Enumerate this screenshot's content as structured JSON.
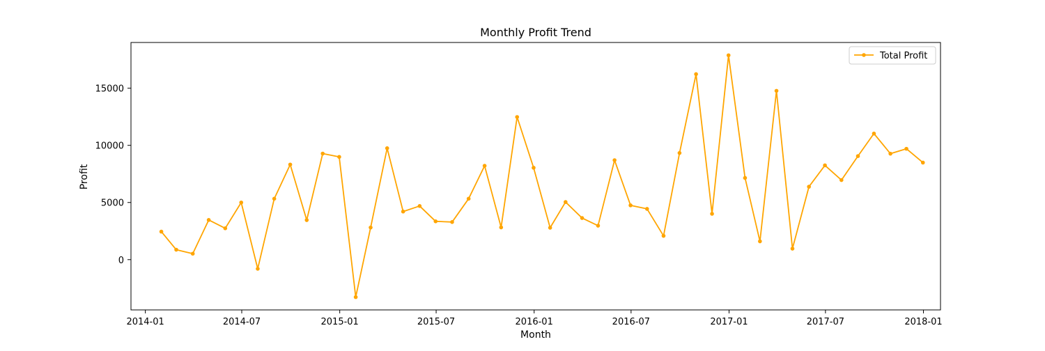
{
  "chart_data": {
    "type": "line",
    "title": "Monthly Profit Trend",
    "xlabel": "Month",
    "ylabel": "Profit",
    "xlim": [
      "2013-12-05",
      "2018-02-02"
    ],
    "ylim": [
      -4400,
      19000
    ],
    "x_ticks": [
      {
        "value": "2014-01-01",
        "label": "2014-01"
      },
      {
        "value": "2014-07-01",
        "label": "2014-07"
      },
      {
        "value": "2015-01-01",
        "label": "2015-01"
      },
      {
        "value": "2015-07-01",
        "label": "2015-07"
      },
      {
        "value": "2016-01-01",
        "label": "2016-01"
      },
      {
        "value": "2016-07-01",
        "label": "2016-07"
      },
      {
        "value": "2017-01-01",
        "label": "2017-01"
      },
      {
        "value": "2017-07-01",
        "label": "2017-07"
      },
      {
        "value": "2018-01-01",
        "label": "2018-01"
      }
    ],
    "y_ticks": [
      {
        "value": 0,
        "label": "0"
      },
      {
        "value": 5000,
        "label": "5000"
      },
      {
        "value": 10000,
        "label": "10000"
      },
      {
        "value": 15000,
        "label": "15000"
      }
    ],
    "grid": false,
    "legend_position": "top-right",
    "series": [
      {
        "name": "Total Profit",
        "color": "#FFA500",
        "marker": "circle",
        "x": [
          "2014-01-31",
          "2014-02-28",
          "2014-03-31",
          "2014-04-30",
          "2014-05-31",
          "2014-06-30",
          "2014-07-31",
          "2014-08-31",
          "2014-09-30",
          "2014-10-31",
          "2014-11-30",
          "2014-12-31",
          "2015-01-31",
          "2015-02-28",
          "2015-03-31",
          "2015-04-30",
          "2015-05-31",
          "2015-06-30",
          "2015-07-31",
          "2015-08-31",
          "2015-09-30",
          "2015-10-31",
          "2015-11-30",
          "2015-12-31",
          "2016-01-31",
          "2016-02-29",
          "2016-03-31",
          "2016-04-30",
          "2016-05-31",
          "2016-06-30",
          "2016-07-31",
          "2016-08-31",
          "2016-09-30",
          "2016-10-31",
          "2016-11-30",
          "2016-12-31",
          "2017-01-31",
          "2017-02-28",
          "2017-03-31",
          "2017-04-30",
          "2017-05-31",
          "2017-06-30",
          "2017-07-31",
          "2017-08-31",
          "2017-09-30",
          "2017-10-31",
          "2017-11-30",
          "2017-12-31"
        ],
        "values": [
          2450,
          870,
          520,
          3470,
          2740,
          5000,
          -800,
          5330,
          8320,
          3460,
          9280,
          8990,
          -3280,
          2810,
          9750,
          4210,
          4690,
          3350,
          3290,
          5330,
          8210,
          2820,
          12480,
          8040,
          2790,
          5040,
          3640,
          2970,
          8700,
          4750,
          4440,
          2080,
          9330,
          16230,
          4010,
          17880,
          7150,
          1600,
          14770,
          960,
          6380,
          8250,
          6960,
          9060,
          11030,
          9270,
          9700,
          8490
        ]
      }
    ]
  }
}
